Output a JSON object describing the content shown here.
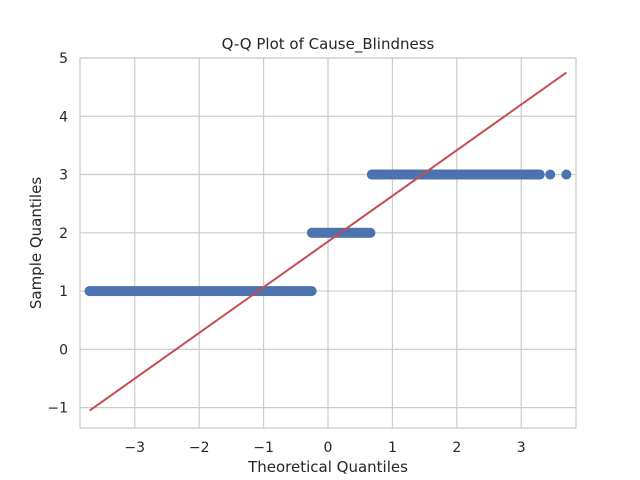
{
  "chart_data": {
    "type": "scatter",
    "title": "Q-Q Plot of Cause_Blindness",
    "xlabel": "Theoretical Quantiles",
    "ylabel": "Sample Quantiles",
    "xlim": [
      -3.85,
      3.85
    ],
    "ylim": [
      -1.35,
      5.0
    ],
    "xticks": [
      -3,
      -2,
      -1,
      0,
      1,
      2,
      3
    ],
    "xtick_labels": [
      "−3",
      "−2",
      "−1",
      "0",
      "1",
      "2",
      "3"
    ],
    "yticks": [
      -1,
      0,
      1,
      2,
      3,
      4,
      5
    ],
    "ytick_labels": [
      "−1",
      "0",
      "1",
      "2",
      "3",
      "4",
      "5"
    ],
    "grid": true,
    "point_color": "#4c72b0",
    "line_color": "#c44e52",
    "reference_line": {
      "x": [
        -3.7,
        3.7
      ],
      "y": [
        -1.05,
        4.75
      ]
    },
    "series": [
      {
        "x_start": -3.7,
        "x_end": -0.25,
        "y": 1,
        "outliers_x": [
          -3.7,
          -3.55
        ]
      },
      {
        "x_start": -0.25,
        "x_end": 0.68,
        "y": 2,
        "outliers_x": []
      },
      {
        "x_start": 0.68,
        "x_end": 3.3,
        "y": 3,
        "outliers_x": [
          3.45,
          3.7
        ]
      }
    ]
  }
}
